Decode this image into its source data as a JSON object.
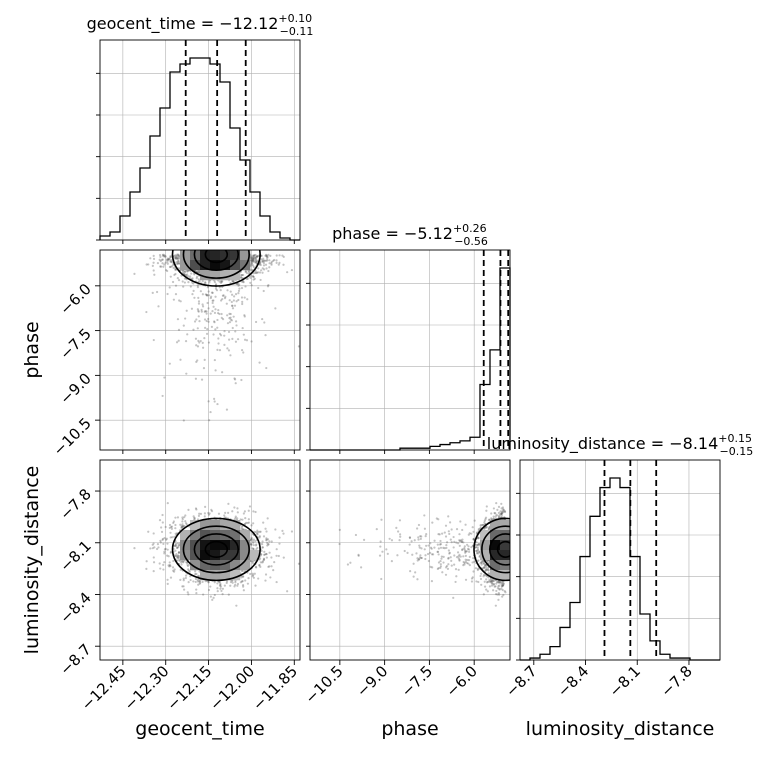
{
  "chart_data": {
    "type": "corner",
    "parameters": [
      {
        "name": "geocent_time",
        "median": -12.12,
        "plus": 0.1,
        "minus": 0.11,
        "title": "geocent_time = −12.12",
        "sup": "+0.10",
        "sub": "−0.11",
        "range": [
          -12.53,
          -11.83
        ],
        "ticks": [
          -12.45,
          -12.3,
          -12.15,
          -12.0,
          -11.85
        ],
        "tick_labels": [
          "−12.45",
          "−12.30",
          "−12.15",
          "−12.00",
          "−11.85"
        ],
        "quantiles": [
          -12.23,
          -12.12,
          -12.02
        ]
      },
      {
        "name": "phase",
        "median": -5.12,
        "plus": 0.26,
        "minus": 0.56,
        "title": "phase = −5.12",
        "sup": "+0.26",
        "sub": "−0.56",
        "range": [
          -11.5,
          -4.8
        ],
        "ticks": [
          -10.5,
          -9.0,
          -7.5,
          -6.0
        ],
        "tick_labels": [
          "−10.5",
          "−9.0",
          "−7.5",
          "−6.0"
        ],
        "quantiles": [
          -5.68,
          -5.12,
          -4.86
        ]
      },
      {
        "name": "luminosity_distance",
        "median": -8.14,
        "plus": 0.15,
        "minus": 0.15,
        "title": "luminosity_distance = −8.14",
        "sup": "+0.15",
        "sub": "−0.15",
        "range": [
          -8.78,
          -7.62
        ],
        "ticks": [
          -8.7,
          -8.4,
          -8.1,
          -7.8
        ],
        "tick_labels": [
          "−8.7",
          "−8.4",
          "−8.1",
          "−7.8"
        ],
        "quantiles": [
          -8.29,
          -8.14,
          -7.99
        ]
      }
    ],
    "histograms": [
      {
        "param": "geocent_time",
        "counts": [
          2,
          4,
          12,
          24,
          36,
          52,
          66,
          84,
          88,
          91,
          91,
          88,
          79,
          56,
          40,
          24,
          12,
          4,
          1,
          0
        ]
      },
      {
        "param": "phase",
        "counts": [
          0,
          0,
          0,
          0,
          0,
          0,
          0,
          0,
          0,
          1,
          1,
          1,
          2,
          3,
          4,
          5,
          7,
          36,
          55,
          100
        ]
      },
      {
        "param": "luminosity_distance",
        "counts": [
          0,
          1,
          3,
          7,
          17,
          30,
          54,
          75,
          90,
          95,
          90,
          54,
          24,
          10,
          3,
          1,
          1,
          0,
          0,
          0
        ]
      }
    ],
    "scatter_pairs": [
      {
        "x": "geocent_time",
        "y": "phase"
      },
      {
        "x": "geocent_time",
        "y": "luminosity_distance"
      },
      {
        "x": "phase",
        "y": "luminosity_distance"
      }
    ],
    "grid": true,
    "colors": {
      "line": "#000000",
      "grid": "#b0b0b0",
      "points": "#555555",
      "density_dark": "#111111"
    }
  }
}
